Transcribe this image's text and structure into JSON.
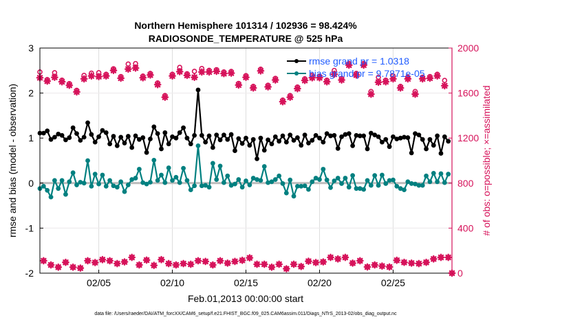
{
  "chart_data": {
    "type": "line",
    "title": [
      "Northern Hemisphere 101314 / 102936 = 98.424%",
      "RADIOSONDE_TEMPERATURE @ 525 hPa"
    ],
    "xlabel": "Feb.01,2013 00:00:00 start",
    "ylabel_left": "rmse and bias (model - observation)",
    "ylabel_right": "# of obs: o=possible; ×=assimilated",
    "footnote": "data file: /Users/raeder/DAI/ATM_forcXX/CAM6_setup/f.e21.FHIST_BGC.f09_025.CAM6assim.011/Diags_NTrS_2013-02/obs_diag_output.nc",
    "xlim": [
      "2013-02-01 00:00",
      "2013-03-01 00:00"
    ],
    "x_ticks": [
      {
        "date": "2013-02-05 00:00",
        "label": "02/05"
      },
      {
        "date": "2013-02-10 00:00",
        "label": "02/10"
      },
      {
        "date": "2013-02-15 00:00",
        "label": "02/15"
      },
      {
        "date": "2013-02-20 00:00",
        "label": "02/20"
      },
      {
        "date": "2013-02-25 00:00",
        "label": "02/25"
      }
    ],
    "ylim_left": [
      -2,
      3
    ],
    "y_ticks_left": [
      "3",
      "2",
      "1",
      "0",
      "-1",
      "-2"
    ],
    "ylim_right": [
      0,
      2000
    ],
    "y_ticks_right": [
      "2000",
      "1600",
      "1200",
      "800",
      "400",
      "0"
    ],
    "grid": true,
    "legend_placement": "top-right",
    "colors": {
      "rmse": "#000000",
      "bias": "#008080",
      "obs": "#d6125a",
      "legend_text": "#1f5bff",
      "zero_line": "#bbbbbb"
    },
    "series": [
      {
        "name": "rmse grand pr = 1.0318",
        "key": "rmse",
        "interval_hours": 6,
        "start": "2013-02-01 00:00",
        "values": [
          1.11,
          1.11,
          1.16,
          0.97,
          1.02,
          1.09,
          1.06,
          0.96,
          1.01,
          1.23,
          1.1,
          0.95,
          1.02,
          1.34,
          1.08,
          0.91,
          1.03,
          1.17,
          1.12,
          0.87,
          1.04,
          0.83,
          1.02,
          0.89,
          1.04,
          0.79,
          1.05,
          0.97,
          1.01,
          0.68,
          0.98,
          1.25,
          1.1,
          0.76,
          1.12,
          0.87,
          1.03,
          1.0,
          1.12,
          1.23,
          1.0,
          0.87,
          1.06,
          2.07,
          1.06,
          0.91,
          1.05,
          0.79,
          1.07,
          0.96,
          1.07,
          0.97,
          1.08,
          0.72,
          0.99,
          0.88,
          1.0,
          0.84,
          0.97,
          0.54,
          1.0,
          0.73,
          0.96,
          0.87,
          1.03,
          0.93,
          1.05,
          0.91,
          1.07,
          0.95,
          1.01,
          0.84,
          1.07,
          0.89,
          0.95,
          1.06,
          1.0,
          0.91,
          1.1,
          1.05,
          1.06,
          0.77,
          1.03,
          1.08,
          1.1,
          0.83,
          1.06,
          1.05,
          1.05,
          0.76,
          1.11,
          1.07,
          1.03,
          0.91,
          0.97,
          0.81,
          1.03,
          0.98,
          1.0,
          1.02,
          1.01,
          0.67,
          1.1,
          1.07,
          0.97,
          0.76,
          0.97,
          0.84,
          1.05,
          0.66,
          1.03,
          0.93
        ]
      },
      {
        "name": "bias grand pr = 9.7871e-05",
        "key": "bias",
        "interval_hours": 6,
        "start": "2013-02-01 00:00",
        "values": [
          -0.12,
          -0.07,
          -0.16,
          -0.31,
          0.06,
          -0.12,
          0.06,
          -0.25,
          0.03,
          0.23,
          -0.04,
          0.02,
          0.0,
          0.5,
          -0.07,
          0.2,
          -0.02,
          0.18,
          -0.07,
          0.06,
          -0.06,
          -0.09,
          0.03,
          -0.19,
          -0.04,
          0.08,
          0.11,
          0.31,
          0.01,
          -0.02,
          0.02,
          0.51,
          0.06,
          0.18,
          0.01,
          0.34,
          0.06,
          0.13,
          0.01,
          0.33,
          0.06,
          -0.15,
          -0.06,
          0.83,
          -0.06,
          -0.05,
          -0.09,
          0.44,
          0.08,
          0.38,
          0.01,
          0.16,
          -0.05,
          -0.02,
          0.08,
          -0.09,
          0.05,
          -0.04,
          0.11,
          0.08,
          0.06,
          0.37,
          0.01,
          0.03,
          0.08,
          0.16,
          -0.01,
          -0.22,
          0.07,
          -0.29,
          -0.07,
          -0.07,
          -0.06,
          -0.14,
          0.03,
          0.11,
          0.08,
          0.31,
          0.07,
          -0.1,
          0.05,
          0.11,
          -0.01,
          0.11,
          -0.09,
          0.17,
          -0.12,
          -0.12,
          -0.14,
          0.06,
          -0.05,
          0.17,
          -0.05,
          0.18,
          -0.01,
          0.06,
          0.07,
          -0.07,
          -0.12,
          -0.15,
          0.03,
          -0.01,
          -0.02,
          -0.05,
          -0.05,
          0.16,
          0.03,
          0.22,
          0.03,
          0.21,
          0.01,
          0.2
        ]
      }
    ],
    "obs_counts": {
      "synoptic_00_12": {
        "start": "2013-02-01 00:00",
        "interval_hours": 12,
        "assimilated": [
          1736,
          1706,
          1740,
          1700,
          1669,
          1610,
          1726,
          1752,
          1746,
          1752,
          1801,
          1732,
          1813,
          1822,
          1736,
          1760,
          1675,
          1563,
          1752,
          1790,
          1757,
          1740,
          1787,
          1787,
          1793,
          1773,
          1777,
          1671,
          1740,
          1645,
          1797,
          1655,
          1716,
          1523,
          1563,
          1639,
          1712,
          1736,
          1736,
          1700,
          1767,
          1716,
          1848,
          1760,
          1848,
          1590,
          1696,
          1700,
          1726,
          1645,
          1726,
          1590,
          1726,
          1732,
          1752,
          1665,
          0
        ],
        "possible": [
          1787,
          1720,
          1781,
          1715,
          1684,
          1625,
          1757,
          1777,
          1781,
          1767,
          1816,
          1747,
          1858,
          1862,
          1751,
          1775,
          1690,
          1578,
          1767,
          1828,
          1772,
          1793,
          1818,
          1802,
          1808,
          1788,
          1792,
          1686,
          1755,
          1660,
          1812,
          1670,
          1731,
          1538,
          1578,
          1654,
          1727,
          1757,
          1751,
          1715,
          1801,
          1731,
          1863,
          1775,
          1863,
          1614,
          1740,
          1715,
          1752,
          1660,
          1741,
          1614,
          1741,
          1747,
          1767,
          1712,
          0
        ]
      },
      "synoptic_06_18": {
        "start": "2013-02-01 06:00",
        "interval_hours": 12,
        "assimilated": [
          110,
          73,
          53,
          96,
          53,
          45,
          110,
          94,
          120,
          110,
          85,
          100,
          140,
          73,
          116,
          69,
          120,
          85,
          73,
          85,
          79,
          110,
          104,
          73,
          110,
          89,
          104,
          114,
          136,
          79,
          79,
          53,
          79,
          39,
          79,
          59,
          106,
          94,
          100,
          140,
          126,
          140,
          89,
          110,
          55,
          73,
          63,
          55,
          114,
          96,
          89,
          85,
          96,
          126,
          140,
          140
        ],
        "possible": [
          110,
          73,
          53,
          96,
          53,
          45,
          110,
          94,
          120,
          110,
          85,
          100,
          140,
          73,
          116,
          69,
          120,
          85,
          73,
          85,
          79,
          110,
          104,
          73,
          110,
          89,
          104,
          114,
          136,
          79,
          79,
          53,
          79,
          39,
          79,
          59,
          106,
          94,
          100,
          140,
          126,
          140,
          89,
          110,
          55,
          73,
          63,
          55,
          114,
          96,
          89,
          85,
          96,
          126,
          140,
          140
        ]
      }
    }
  }
}
